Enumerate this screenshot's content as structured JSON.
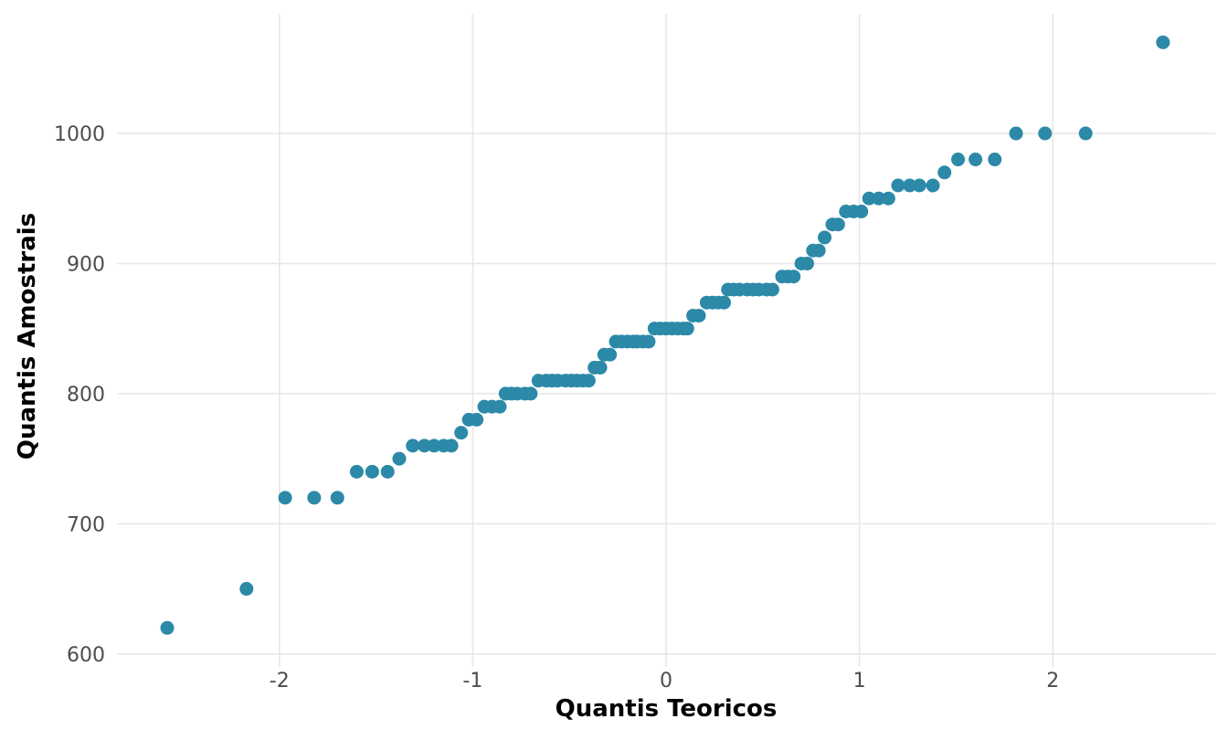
{
  "chart_data": {
    "type": "scatter",
    "x_label": "Quantis Teoricos",
    "y_label": "Quantis Amostrais",
    "color": "#2c89a8",
    "grid": true,
    "xlim": [
      -2.84,
      2.84
    ],
    "ylim": [
      590,
      1092
    ],
    "xticks": [
      -2,
      -1,
      0,
      1,
      2
    ],
    "yticks": [
      600,
      700,
      800,
      900,
      1000
    ],
    "x": [
      -2.58,
      -2.17,
      -1.97,
      -1.82,
      -1.7,
      -1.6,
      -1.52,
      -1.44,
      -1.38,
      -1.31,
      -1.25,
      -1.2,
      -1.15,
      -1.11,
      -1.06,
      -1.02,
      -0.98,
      -0.94,
      -0.9,
      -0.86,
      -0.83,
      -0.8,
      -0.77,
      -0.73,
      -0.7,
      -0.66,
      -0.62,
      -0.59,
      -0.56,
      -0.52,
      -0.49,
      -0.46,
      -0.43,
      -0.4,
      -0.37,
      -0.34,
      -0.32,
      -0.29,
      -0.26,
      -0.23,
      -0.2,
      -0.17,
      -0.15,
      -0.12,
      -0.09,
      -0.06,
      -0.03,
      0.0,
      0.03,
      0.06,
      0.09,
      0.11,
      0.14,
      0.17,
      0.21,
      0.24,
      0.27,
      0.3,
      0.32,
      0.35,
      0.38,
      0.42,
      0.45,
      0.48,
      0.52,
      0.55,
      0.6,
      0.63,
      0.66,
      0.7,
      0.73,
      0.76,
      0.79,
      0.82,
      0.86,
      0.89,
      0.93,
      0.97,
      1.01,
      1.05,
      1.1,
      1.15,
      1.2,
      1.26,
      1.31,
      1.38,
      1.44,
      1.51,
      1.6,
      1.7,
      1.81,
      1.96,
      2.17,
      2.57
    ],
    "values": [
      620,
      650,
      720,
      720,
      720,
      740,
      740,
      740,
      750,
      760,
      760,
      760,
      760,
      760,
      770,
      780,
      780,
      790,
      790,
      790,
      800,
      800,
      800,
      800,
      800,
      810,
      810,
      810,
      810,
      810,
      810,
      810,
      810,
      810,
      820,
      820,
      830,
      830,
      840,
      840,
      840,
      840,
      840,
      840,
      840,
      850,
      850,
      850,
      850,
      850,
      850,
      850,
      860,
      860,
      870,
      870,
      870,
      870,
      880,
      880,
      880,
      880,
      880,
      880,
      880,
      880,
      890,
      890,
      890,
      900,
      900,
      910,
      910,
      920,
      930,
      930,
      940,
      940,
      940,
      950,
      950,
      950,
      960,
      960,
      960,
      960,
      970,
      980,
      980,
      980,
      1000,
      1000,
      1000,
      1070
    ]
  }
}
